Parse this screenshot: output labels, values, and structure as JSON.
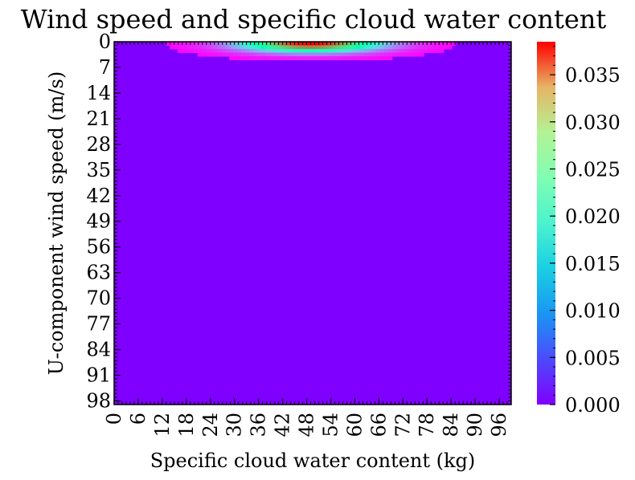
{
  "chart_data": {
    "type": "heatmap",
    "title": "Wind speed and specific cloud water content",
    "xlabel": "Specific cloud water content (kg)",
    "ylabel": "U-component wind speed (m/s)",
    "x_range": [
      0,
      99
    ],
    "y_range": [
      0,
      99
    ],
    "y_inverted": true,
    "x_ticks": [
      "0",
      "6",
      "12",
      "18",
      "24",
      "30",
      "36",
      "42",
      "48",
      "54",
      "60",
      "66",
      "72",
      "78",
      "84",
      "90",
      "96"
    ],
    "y_ticks": [
      "0",
      "7",
      "14",
      "21",
      "28",
      "35",
      "42",
      "49",
      "56",
      "63",
      "70",
      "77",
      "84",
      "91",
      "98"
    ],
    "colormap": "rainbow",
    "colorbar": {
      "min": 0.0,
      "max": 0.0385,
      "ticks": [
        "0.000",
        "0.005",
        "0.010",
        "0.015",
        "0.020",
        "0.025",
        "0.030",
        "0.035"
      ]
    },
    "hotspot": {
      "x_center": 49,
      "y_center": 0,
      "peak_value": 0.0385,
      "x_spread": 12,
      "y_spread": 1.6
    },
    "background_value": 0.0
  }
}
